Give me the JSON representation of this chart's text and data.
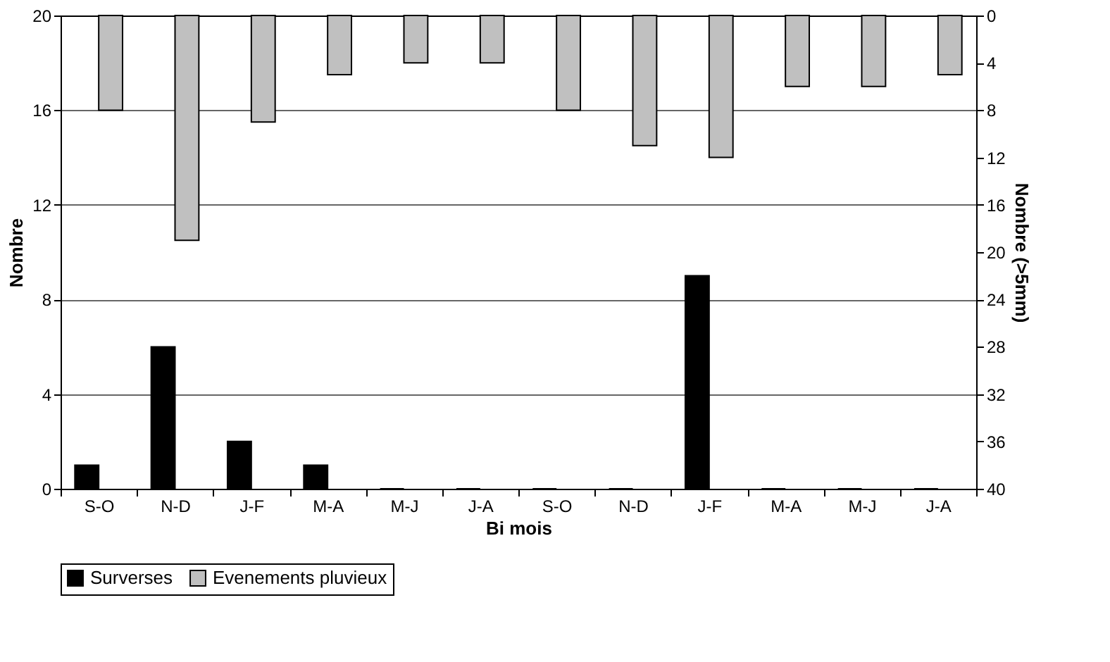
{
  "chart_data": {
    "type": "bar",
    "xlabel": "Bi mois",
    "ylabel": "Nombre",
    "y2label": "Nombre (>5mm)",
    "categories": [
      "S-O",
      "N-D",
      "J-F",
      "M-A",
      "M-J",
      "J-A",
      "S-O",
      "N-D",
      "J-F",
      "M-A",
      "M-J",
      "J-A"
    ],
    "series": [
      {
        "name": "Surverses",
        "color": "#000000",
        "values": [
          1,
          6,
          2,
          1,
          0,
          0,
          0,
          0,
          9,
          0,
          0,
          0
        ]
      },
      {
        "name": "Evenements pluvieux",
        "color": "#c0c0c0",
        "axis": "y2",
        "values": [
          8,
          19,
          9,
          5,
          4,
          4,
          8,
          11,
          12,
          6,
          6,
          5
        ]
      }
    ],
    "ylim": [
      0,
      20
    ],
    "yticks": [
      0,
      4,
      8,
      12,
      16,
      20
    ],
    "y2lim": [
      40,
      0
    ],
    "y2ticks": [
      0,
      4,
      8,
      12,
      16,
      20,
      24,
      28,
      32,
      36,
      40
    ],
    "grid": "y",
    "legend": "bottom"
  }
}
